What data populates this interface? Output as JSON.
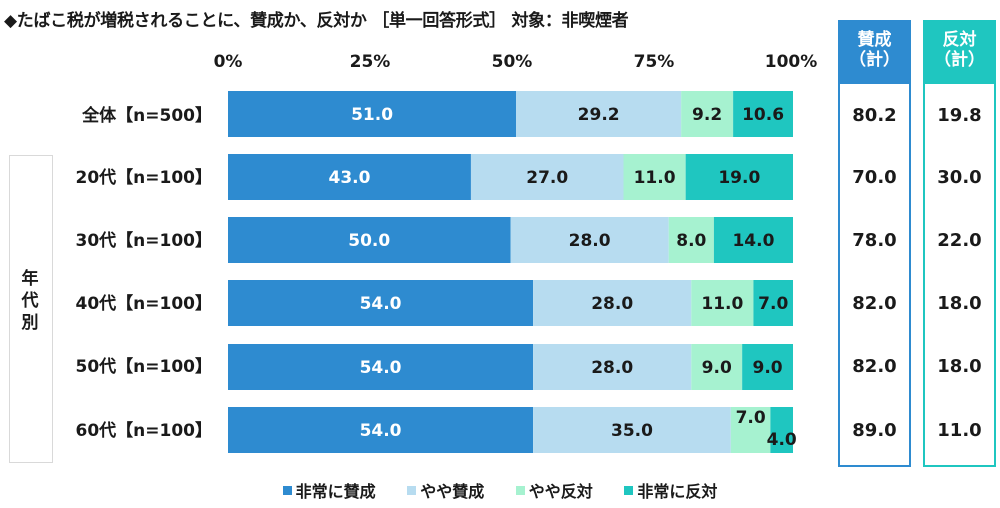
{
  "title": "◆たばこ税が増税されることに、賛成か、反対か ［単一回答形式］ 対象：非喫煙者",
  "group_label": "年代別",
  "totals_headers": {
    "agree": [
      "賛成",
      "（計）"
    ],
    "oppose": [
      "反対",
      "（計）"
    ]
  },
  "colors": {
    "agree_strong": "#2e8bd0",
    "agree_some": "#b7dcf0",
    "oppose_some": "#a6f2d0",
    "oppose_strong": "#1fc6c0",
    "frame": "#2e8bd0"
  },
  "chart_data": {
    "type": "bar",
    "orientation": "horizontal",
    "stacked": true,
    "xlim": [
      0,
      100
    ],
    "ticks": [
      "0%",
      "25%",
      "50%",
      "75%",
      "100%"
    ],
    "categories": [
      "全体【n=500】",
      "20代【n=100】",
      "30代【n=100】",
      "40代【n=100】",
      "50代【n=100】",
      "60代【n=100】"
    ],
    "series": [
      {
        "name": "非常に賛成",
        "values": [
          51.0,
          43.0,
          50.0,
          54.0,
          54.0,
          54.0
        ],
        "labels": [
          "51.0",
          "43.0",
          "50.0",
          "54.0",
          "54.0",
          "54.0"
        ]
      },
      {
        "name": "やや賛成",
        "values": [
          29.2,
          27.0,
          28.0,
          28.0,
          28.0,
          35.0
        ],
        "labels": [
          "29.2",
          "27.0",
          "28.0",
          "28.0",
          "28.0",
          "35.0"
        ]
      },
      {
        "name": "やや反対",
        "values": [
          9.2,
          11.0,
          8.0,
          11.0,
          9.0,
          7.0
        ],
        "labels": [
          "9.2",
          "11.0",
          "8.0",
          "11.0",
          "9.0",
          "7.0"
        ]
      },
      {
        "name": "非常に反対",
        "values": [
          10.6,
          19.0,
          14.0,
          7.0,
          9.0,
          4.0
        ],
        "labels": [
          "10.6",
          "19.0",
          "14.0",
          "7.0",
          "9.0",
          "4.0"
        ]
      }
    ],
    "totals": {
      "agree": [
        "80.2",
        "70.0",
        "78.0",
        "82.0",
        "82.0",
        "89.0"
      ],
      "oppose": [
        "19.8",
        "30.0",
        "22.0",
        "18.0",
        "18.0",
        "11.0"
      ]
    },
    "legend_position": "bottom"
  }
}
